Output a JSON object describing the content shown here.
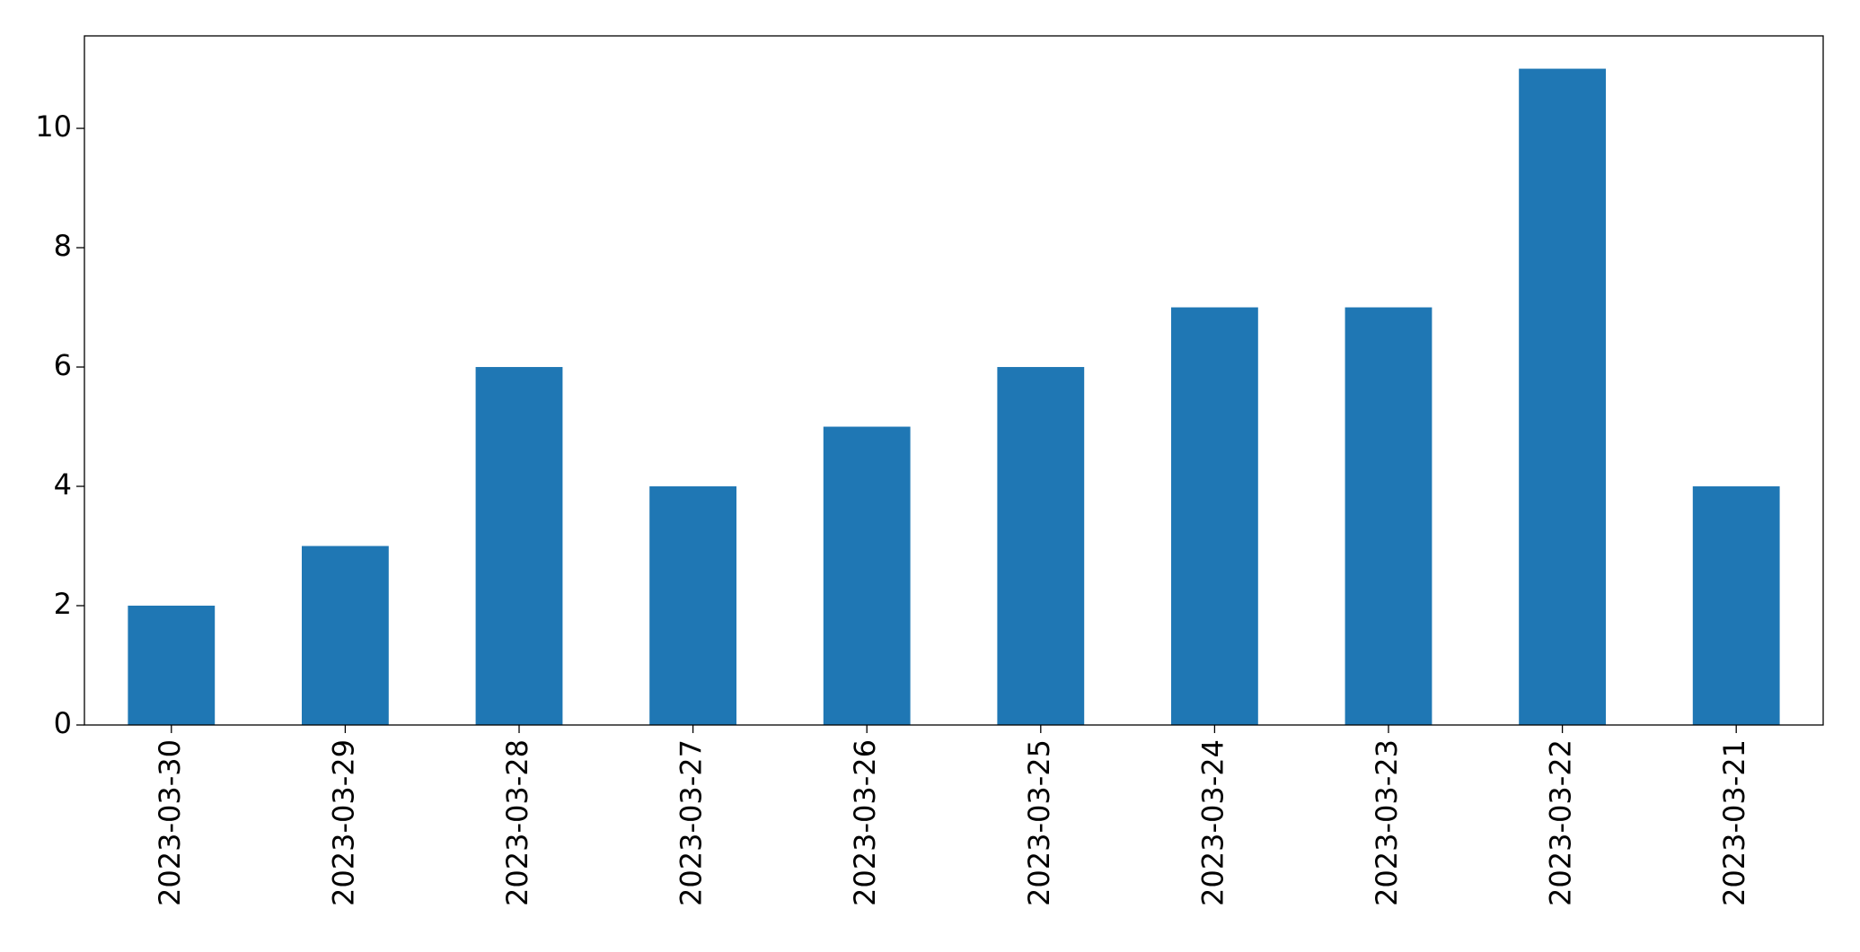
{
  "chart_data": {
    "type": "bar",
    "categories": [
      "2023-03-30",
      "2023-03-29",
      "2023-03-28",
      "2023-03-27",
      "2023-03-26",
      "2023-03-25",
      "2023-03-24",
      "2023-03-23",
      "2023-03-22",
      "2023-03-21"
    ],
    "values": [
      2,
      3,
      6,
      4,
      5,
      6,
      7,
      7,
      11,
      4
    ],
    "color": "#1f77b4",
    "ylim": [
      0,
      11.55
    ],
    "yticks": [
      0,
      2,
      4,
      6,
      8,
      10
    ],
    "grid": false
  }
}
